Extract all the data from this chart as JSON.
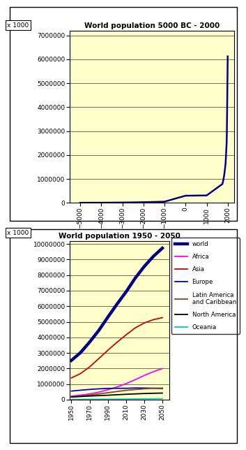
{
  "chart1": {
    "title": "World population 5000 BC - 2000",
    "unit_label": "x 1000",
    "bg_color": "#ffffcc",
    "line_color": "#000080",
    "line_width": 1.8,
    "years": [
      -5000,
      -4000,
      -3000,
      -2000,
      -1000,
      0,
      1000,
      1750,
      1800,
      1850,
      1900,
      1950,
      1960,
      1970,
      1980,
      1990,
      2000
    ],
    "population": [
      5000,
      7000,
      14000,
      27000,
      50000,
      300000,
      310000,
      791000,
      978000,
      1262000,
      1650000,
      2521000,
      3021000,
      3696000,
      4440000,
      5296000,
      6127000
    ],
    "xlim": [
      -5500,
      2300
    ],
    "ylim": [
      0,
      7200000
    ],
    "xticks": [
      -5000,
      -4000,
      -3000,
      -2000,
      -1000,
      0,
      1000,
      2000
    ],
    "yticks": [
      0,
      1000000,
      2000000,
      3000000,
      4000000,
      5000000,
      6000000,
      7000000
    ]
  },
  "chart2": {
    "title": "World population 1950 - 2050",
    "unit_label": "x 1000",
    "bg_color": "#ffffcc",
    "xlim": [
      1948,
      2058
    ],
    "ylim": [
      0,
      10200000
    ],
    "xticks": [
      1950,
      1970,
      1990,
      2010,
      2030,
      2050
    ],
    "yticks": [
      0,
      1000000,
      2000000,
      3000000,
      4000000,
      5000000,
      6000000,
      7000000,
      8000000,
      9000000,
      10000000
    ],
    "series": [
      {
        "name": "world",
        "color": "#000080",
        "linewidth": 3.2,
        "years": [
          1950,
          1960,
          1970,
          1980,
          1990,
          2000,
          2010,
          2020,
          2030,
          2040,
          2050
        ],
        "values": [
          2521000,
          3021000,
          3696000,
          4440000,
          5296000,
          6127000,
          6916000,
          7795000,
          8549000,
          9198000,
          9735000
        ]
      },
      {
        "name": "Africa",
        "color": "#ff00ff",
        "linewidth": 1.3,
        "years": [
          1950,
          1960,
          1970,
          1980,
          1990,
          2000,
          2010,
          2020,
          2030,
          2040,
          2050
        ],
        "values": [
          228000,
          285000,
          366000,
          477000,
          634000,
          811000,
          1022000,
          1276000,
          1549000,
          1792000,
          1994000
        ]
      },
      {
        "name": "Asia",
        "color": "#cc0000",
        "linewidth": 1.3,
        "years": [
          1950,
          1960,
          1970,
          1980,
          1990,
          2000,
          2010,
          2020,
          2030,
          2040,
          2050
        ],
        "values": [
          1396000,
          1674000,
          2101000,
          2632000,
          3168000,
          3680000,
          4157000,
          4601000,
          4923000,
          5138000,
          5267000
        ]
      },
      {
        "name": "Europe",
        "color": "#0000cc",
        "linewidth": 1.3,
        "years": [
          1950,
          1960,
          1970,
          1980,
          1990,
          2000,
          2010,
          2020,
          2030,
          2040,
          2050
        ],
        "values": [
          549000,
          605000,
          656000,
          694000,
          721000,
          726000,
          728000,
          748000,
          745000,
          734000,
          716000
        ]
      },
      {
        "name": "Latin America\nand Caribbean",
        "color": "#8B4513",
        "linewidth": 1.3,
        "years": [
          1950,
          1960,
          1970,
          1980,
          1990,
          2000,
          2010,
          2020,
          2030,
          2040,
          2050
        ],
        "values": [
          168000,
          220000,
          287000,
          365000,
          444000,
          521000,
          595000,
          650000,
          695000,
          726000,
          745000
        ]
      },
      {
        "name": "North America",
        "color": "#000000",
        "linewidth": 1.3,
        "years": [
          1950,
          1960,
          1970,
          1980,
          1990,
          2000,
          2010,
          2020,
          2030,
          2040,
          2050
        ],
        "values": [
          172000,
          204000,
          232000,
          257000,
          283000,
          315000,
          344000,
          369000,
          391000,
          408000,
          422000
        ]
      },
      {
        "name": "Oceania",
        "color": "#00cccc",
        "linewidth": 1.3,
        "years": [
          1950,
          1960,
          1970,
          1980,
          1990,
          2000,
          2010,
          2020,
          2030,
          2040,
          2050
        ],
        "values": [
          13000,
          16000,
          19000,
          23000,
          27000,
          31000,
          36000,
          42000,
          47000,
          52000,
          57000
        ]
      }
    ]
  }
}
